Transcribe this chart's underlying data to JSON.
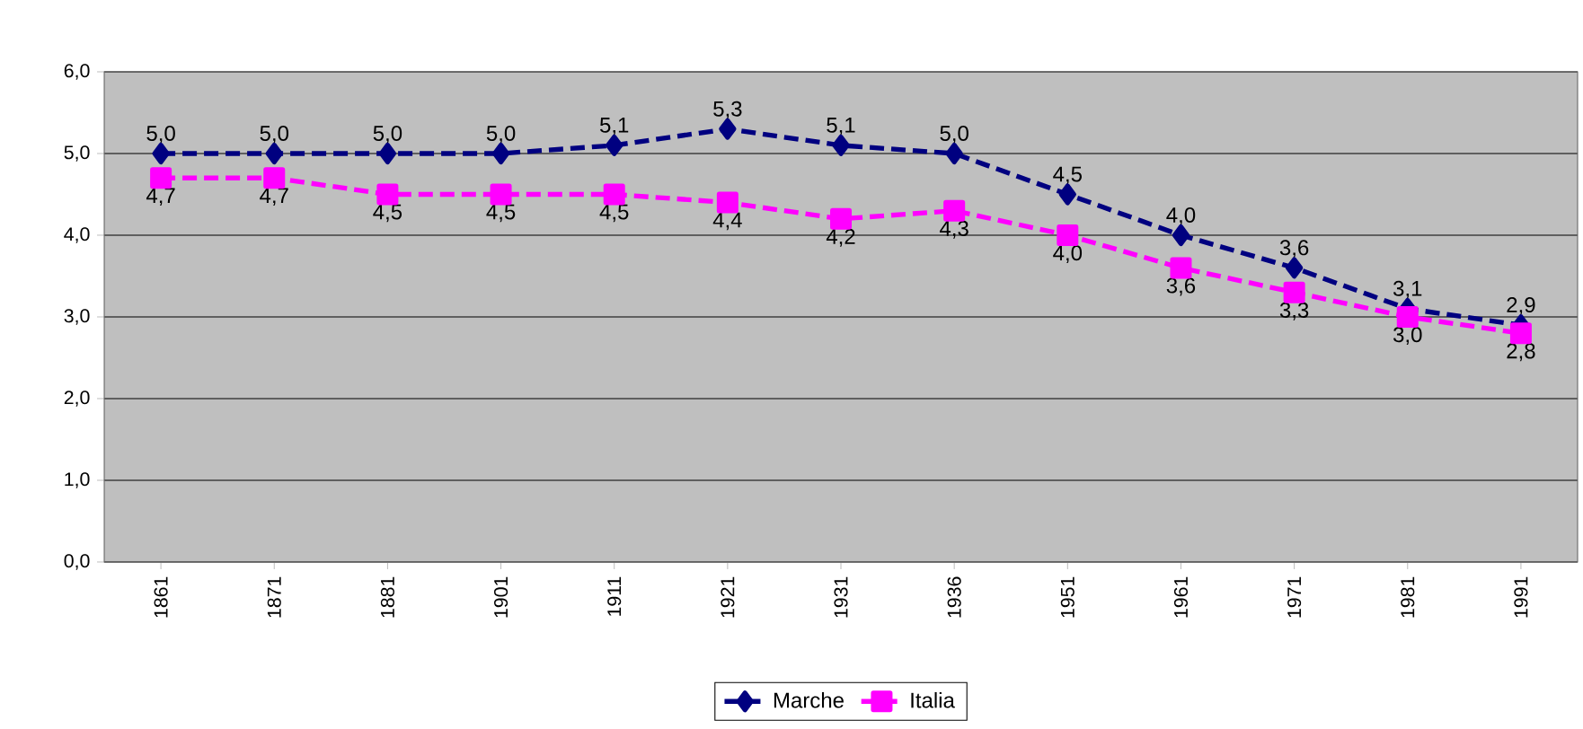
{
  "chart_data": {
    "type": "line",
    "categories": [
      "1861",
      "1871",
      "1881",
      "1901",
      "1911",
      "1921",
      "1931",
      "1936",
      "1951",
      "1961",
      "1971",
      "1981",
      "1991"
    ],
    "ylim": [
      0,
      6
    ],
    "yticks": [
      {
        "value": 0,
        "label": "0,0"
      },
      {
        "value": 1,
        "label": "1,0"
      },
      {
        "value": 2,
        "label": "2,0"
      },
      {
        "value": 3,
        "label": "3,0"
      },
      {
        "value": 4,
        "label": "4,0"
      },
      {
        "value": 5,
        "label": "5,0"
      },
      {
        "value": 6,
        "label": "6,0"
      }
    ],
    "grid": "y",
    "legend": "bottom",
    "line_style": "dashed",
    "series": [
      {
        "name": "Marche",
        "color": "#000080",
        "marker": "diamond",
        "values": [
          5.0,
          5.0,
          5.0,
          5.0,
          5.1,
          5.3,
          5.1,
          5.0,
          4.5,
          4.0,
          3.6,
          3.1,
          2.9
        ],
        "value_labels": [
          "5,0",
          "5,0",
          "5,0",
          "5,0",
          "5,1",
          "5,3",
          "5,1",
          "5,0",
          "4,5",
          "4,0",
          "3,6",
          "3,1",
          "2,9"
        ]
      },
      {
        "name": "Italia",
        "color": "#ff00ff",
        "marker": "square",
        "values": [
          4.7,
          4.7,
          4.5,
          4.5,
          4.5,
          4.4,
          4.2,
          4.3,
          4.0,
          3.6,
          3.3,
          3.0,
          2.8
        ],
        "value_labels": [
          "4,7",
          "4,7",
          "4,5",
          "4,5",
          "4,5",
          "4,4",
          "4,2",
          "4,3",
          "4,0",
          "3,6",
          "3,3",
          "3,0",
          "2,8"
        ]
      }
    ]
  }
}
